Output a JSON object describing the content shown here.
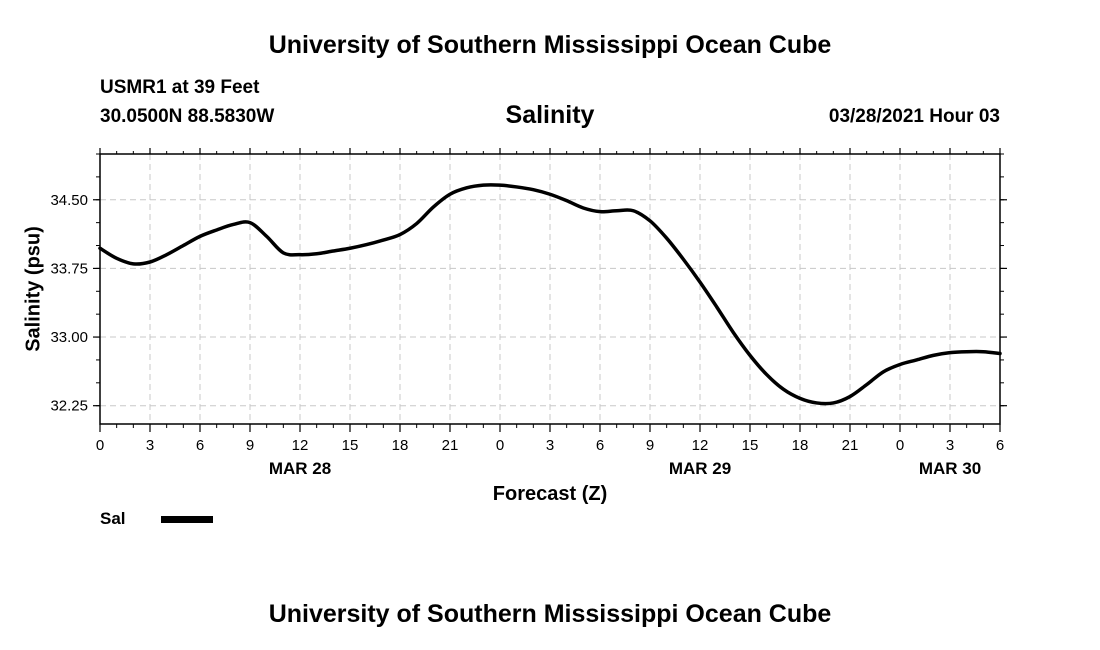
{
  "header": {
    "title_top": "University of Southern Mississippi Ocean Cube",
    "station": "USMR1 at 39 Feet",
    "coords": "30.0500N  88.5830W",
    "chart_title": "Salinity",
    "timestamp": "03/28/2021 Hour 03"
  },
  "footer": {
    "title_bottom": "University of Southern Mississippi Ocean Cube"
  },
  "legend": {
    "label": "Sal",
    "color": "#000000"
  },
  "chart_data": {
    "type": "line",
    "title": "Salinity",
    "xlabel": "Forecast (Z)",
    "ylabel": "Salinity (psu)",
    "ylim": [
      32.05,
      35.0
    ],
    "yticks": [
      32.25,
      33.0,
      33.75,
      34.5
    ],
    "ytick_labels": [
      "32.25",
      "33.00",
      "33.75",
      "34.50"
    ],
    "xlim": [
      0,
      54
    ],
    "xticks": [
      0,
      3,
      6,
      9,
      12,
      15,
      18,
      21,
      24,
      27,
      30,
      33,
      36,
      39,
      42,
      45,
      48,
      51,
      54
    ],
    "xtick_labels": [
      "0",
      "3",
      "6",
      "9",
      "12",
      "15",
      "18",
      "21",
      "0",
      "3",
      "6",
      "9",
      "12",
      "15",
      "18",
      "21",
      "0",
      "3",
      "6"
    ],
    "date_labels": [
      {
        "x": 12,
        "label": "MAR 28"
      },
      {
        "x": 36,
        "label": "MAR 29"
      },
      {
        "x": 51,
        "label": "MAR 30"
      }
    ],
    "grid": true,
    "series": [
      {
        "name": "Sal",
        "color": "#000000",
        "x": [
          0,
          1,
          2,
          3,
          4,
          5,
          6,
          7,
          8,
          9,
          10,
          11,
          12,
          13,
          14,
          15,
          16,
          17,
          18,
          19,
          20,
          21,
          22,
          23,
          24,
          25,
          26,
          27,
          28,
          29,
          30,
          31,
          32,
          33,
          34,
          35,
          36,
          37,
          38,
          39,
          40,
          41,
          42,
          43,
          44,
          45,
          46,
          47,
          48,
          49,
          50,
          51,
          52,
          53,
          54
        ],
        "values": [
          33.97,
          33.86,
          33.8,
          33.82,
          33.9,
          34.0,
          34.1,
          34.17,
          34.23,
          34.25,
          34.1,
          33.92,
          33.9,
          33.91,
          33.94,
          33.97,
          34.01,
          34.06,
          34.12,
          34.24,
          34.42,
          34.56,
          34.63,
          34.66,
          34.66,
          34.64,
          34.61,
          34.56,
          34.49,
          34.41,
          34.37,
          34.38,
          34.38,
          34.27,
          34.08,
          33.85,
          33.6,
          33.33,
          33.05,
          32.8,
          32.59,
          32.43,
          32.33,
          32.28,
          32.28,
          32.35,
          32.48,
          32.62,
          32.7,
          32.75,
          32.8,
          32.83,
          32.84,
          32.84,
          32.82
        ]
      }
    ]
  }
}
